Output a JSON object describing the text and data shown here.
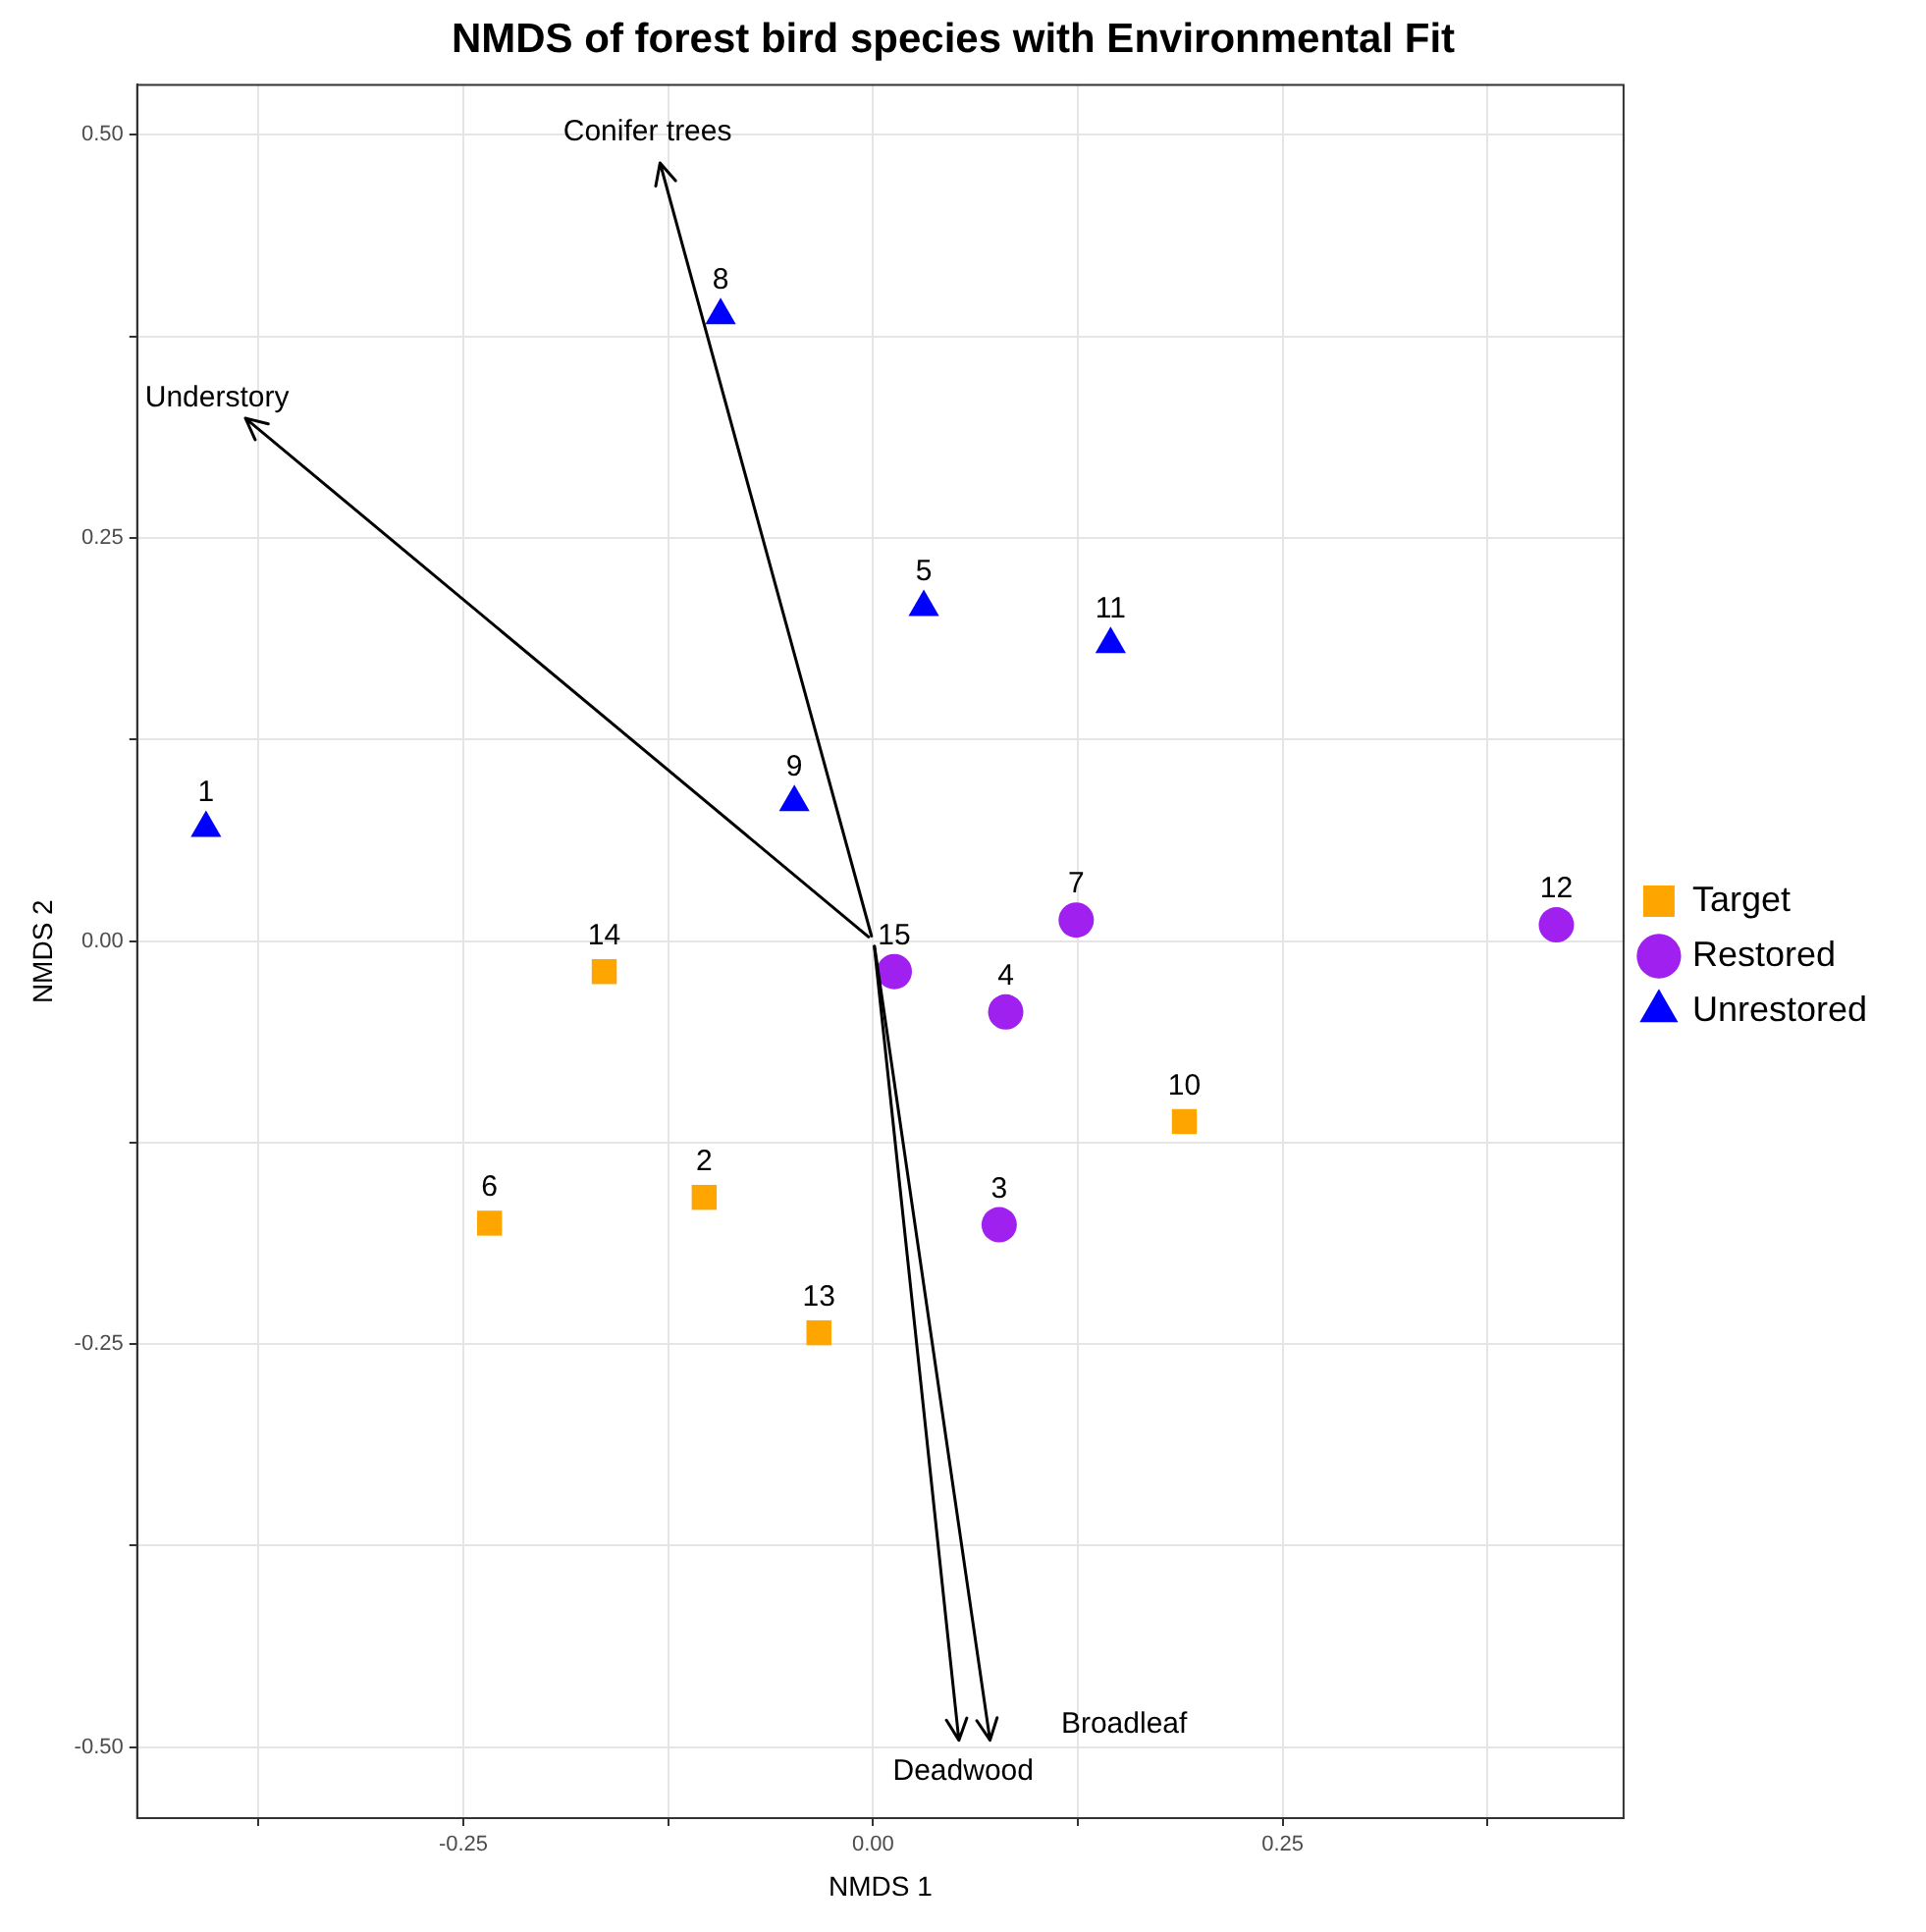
{
  "chart_data": {
    "type": "scatter",
    "title": "NMDS of forest bird species with Environmental Fit",
    "xlabel": "NMDS 1",
    "ylabel": "NMDS 2",
    "xlim": [
      -0.449,
      0.458
    ],
    "ylim": [
      -0.544,
      0.531
    ],
    "xticks": [
      {
        "value": -0.375,
        "label": null
      },
      {
        "value": -0.25,
        "label": "-0.25"
      },
      {
        "value": -0.125,
        "label": null
      },
      {
        "value": 0,
        "label": "0.00"
      },
      {
        "value": 0.125,
        "label": null
      },
      {
        "value": 0.25,
        "label": "0.25"
      },
      {
        "value": 0.375,
        "label": null
      }
    ],
    "yticks": [
      {
        "value": -0.5,
        "label": "-0.50"
      },
      {
        "value": -0.375,
        "label": null
      },
      {
        "value": -0.25,
        "label": "-0.25"
      },
      {
        "value": -0.125,
        "label": null
      },
      {
        "value": 0,
        "label": "0.00"
      },
      {
        "value": 0.125,
        "label": null
      },
      {
        "value": 0.25,
        "label": "0.25"
      },
      {
        "value": 0.375,
        "label": null
      },
      {
        "value": 0.5,
        "label": "0.50"
      }
    ],
    "grid": true,
    "legend": "right",
    "series": [
      {
        "name": "Target",
        "color": "#ffa500",
        "marker": "square",
        "x": [
          -0.103,
          -0.234,
          0.19,
          -0.033,
          -0.164
        ],
        "values": [
          -0.159,
          -0.175,
          -0.112,
          -0.243,
          -0.019
        ]
      },
      {
        "name": "Restored",
        "color": "#a020f0",
        "marker": "circle",
        "x": [
          0.077,
          0.081,
          0.124,
          0.417,
          0.013
        ],
        "values": [
          -0.176,
          -0.044,
          0.013,
          0.01,
          -0.019
        ]
      },
      {
        "name": "Unrestored",
        "color": "#0000ff",
        "marker": "triangle",
        "x": [
          -0.407,
          0.031,
          -0.093,
          -0.048,
          0.145
        ],
        "values": [
          0.07,
          0.207,
          0.388,
          0.086,
          0.184
        ]
      },
      {
        "type": "line",
        "name": "Conifer trees",
        "color": "#000000",
        "x": [
          0,
          -0.13
        ],
        "values": [
          0,
          0.483
        ]
      },
      {
        "type": "line",
        "name": "Understory",
        "color": "#000000",
        "x": [
          0,
          -0.383
        ],
        "values": [
          0,
          0.324
        ]
      },
      {
        "type": "line",
        "name": "Deadwood",
        "color": "#000000",
        "x": [
          0,
          0.052
        ],
        "values": [
          0,
          -0.496
        ]
      },
      {
        "type": "line",
        "name": "Broadleaf",
        "color": "#000000",
        "x": [
          0,
          0.071
        ],
        "values": [
          0,
          -0.496
        ]
      }
    ],
    "annotations": [
      {
        "text": "1",
        "x": -0.407,
        "y": 0.07
      },
      {
        "text": "2",
        "x": -0.103,
        "y": -0.159
      },
      {
        "text": "3",
        "x": 0.077,
        "y": -0.176
      },
      {
        "text": "4",
        "x": 0.081,
        "y": -0.044
      },
      {
        "text": "5",
        "x": 0.031,
        "y": 0.207
      },
      {
        "text": "6",
        "x": -0.234,
        "y": -0.175
      },
      {
        "text": "7",
        "x": 0.124,
        "y": 0.013
      },
      {
        "text": "8",
        "x": -0.093,
        "y": 0.388
      },
      {
        "text": "9",
        "x": -0.048,
        "y": 0.086
      },
      {
        "text": "10",
        "x": 0.19,
        "y": -0.112
      },
      {
        "text": "11",
        "x": 0.145,
        "y": 0.184
      },
      {
        "text": "12",
        "x": 0.417,
        "y": 0.01
      },
      {
        "text": "13",
        "x": -0.033,
        "y": -0.243
      },
      {
        "text": "14",
        "x": -0.164,
        "y": -0.019
      },
      {
        "text": "15",
        "x": 0.013,
        "y": -0.019
      }
    ]
  }
}
